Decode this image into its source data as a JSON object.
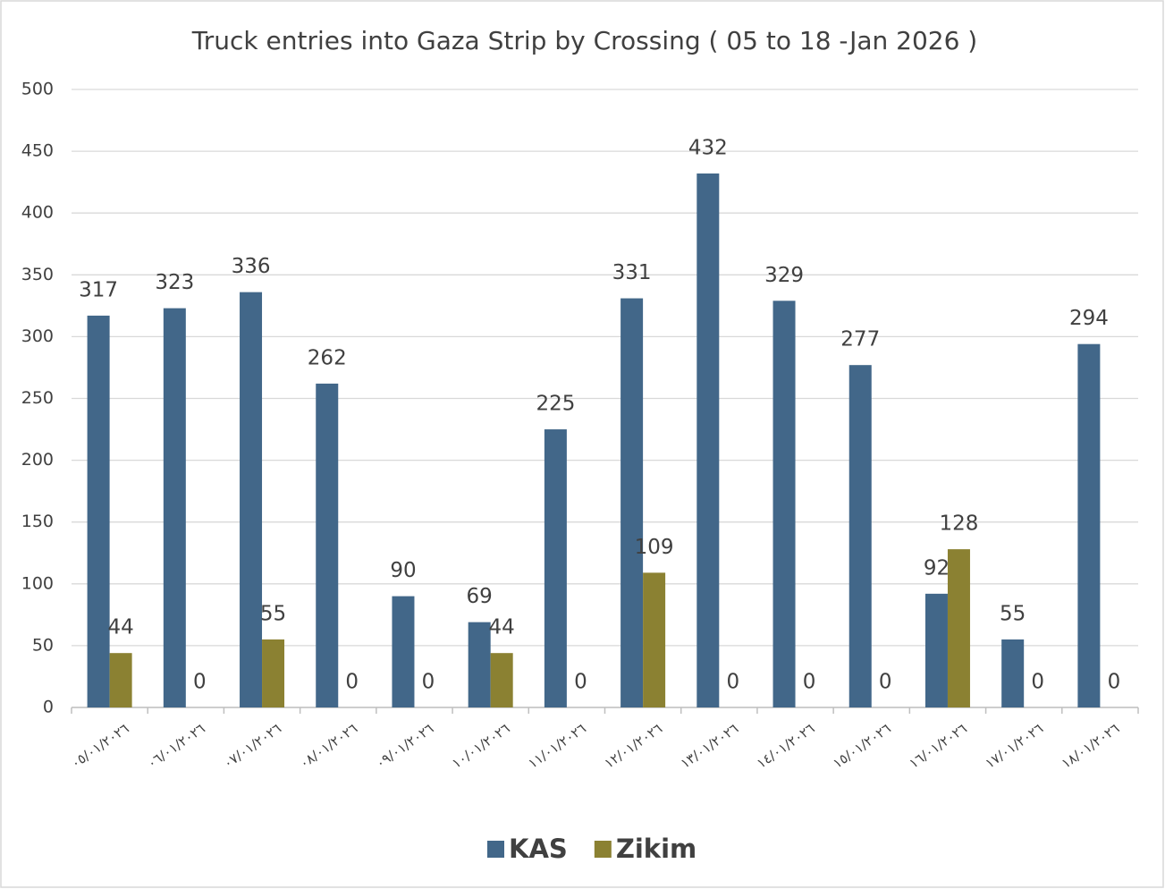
{
  "chart_data": {
    "type": "bar",
    "title": "Truck entries into Gaza Strip by Crossing ( 05 to 18 -Jan 2026 )",
    "categories": [
      "٠٥/٠١/٢٠٢٦",
      "٠٦/٠١/٢٠٢٦",
      "٠٧/٠١/٢٠٢٦",
      "٠٨/٠١/٢٠٢٦",
      "٠٩/٠١/٢٠٢٦",
      "١٠/٠١/٢٠٢٦",
      "١١/٠١/٢٠٢٦",
      "١٢/٠١/٢٠٢٦",
      "١٣/٠١/٢٠٢٦",
      "١٤/٠١/٢٠٢٦",
      "١٥/٠١/٢٠٢٦",
      "١٦/٠١/٢٠٢٦",
      "١٧/٠١/٢٠٢٦",
      "١٨/٠١/٢٠٢٦"
    ],
    "series": [
      {
        "name": "KAS",
        "color": "#426789",
        "values": [
          317,
          323,
          336,
          262,
          90,
          69,
          225,
          331,
          432,
          329,
          277,
          92,
          55,
          294
        ]
      },
      {
        "name": "Zikim",
        "color": "#8b8132",
        "values": [
          44,
          0,
          55,
          0,
          0,
          44,
          0,
          109,
          0,
          0,
          0,
          128,
          0,
          0
        ]
      }
    ],
    "ylim": [
      0,
      500
    ],
    "yticks": [
      0,
      50,
      100,
      150,
      200,
      250,
      300,
      350,
      400,
      450,
      500
    ],
    "grid": true,
    "legend": "bottom"
  }
}
